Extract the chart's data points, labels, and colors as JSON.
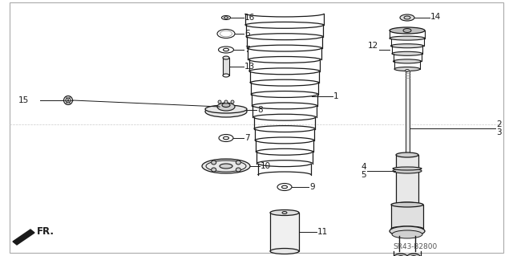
{
  "bg_color": "#ffffff",
  "border_color": "#999999",
  "diagram_code": "SR43-B2800",
  "direction_label": "FR.",
  "dark": "#1a1a1a",
  "gray": "#888888",
  "light_gray": "#cccccc"
}
